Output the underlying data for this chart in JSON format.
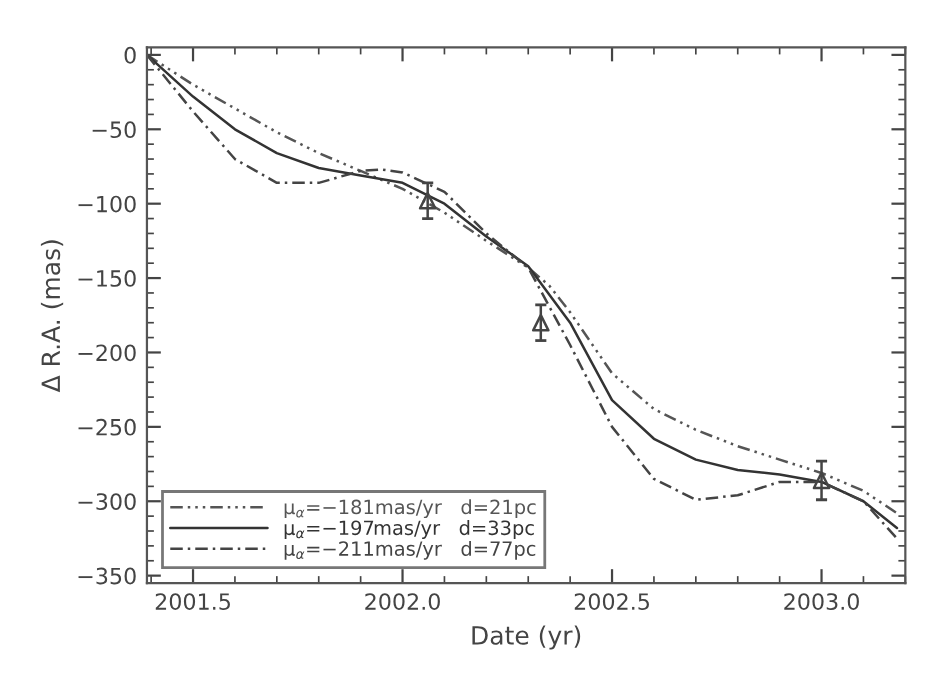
{
  "chart_data": {
    "type": "line",
    "xlabel": "Date (yr)",
    "ylabel": "Δ R.A. (mas)",
    "xlim": [
      2001.39,
      2003.2
    ],
    "ylim": [
      -355,
      5
    ],
    "xticks": [
      {
        "value": 2001.5,
        "label": "2001.5"
      },
      {
        "value": 2002.0,
        "label": "2002.0"
      },
      {
        "value": 2002.5,
        "label": "2002.5"
      },
      {
        "value": 2003.0,
        "label": "2003.0"
      }
    ],
    "yticks": [
      -350,
      -300,
      -250,
      -200,
      -150,
      -100,
      -50,
      0
    ],
    "grid": false,
    "legend": "bottom left",
    "series": [
      {
        "name": "μ$_{α}$=−181mas/yr   d=21pc",
        "color": "#555555",
        "line_style": "dash-dot-dot",
        "x": [
          2001.39,
          2001.5,
          2001.6,
          2001.7,
          2001.8,
          2001.9,
          2002.0,
          2002.1,
          2002.2,
          2002.3,
          2002.35,
          2002.4,
          2002.5,
          2002.6,
          2002.7,
          2002.8,
          2002.9,
          2003.0,
          2003.1,
          2003.18
        ],
        "values": [
          0,
          -20,
          -36,
          -52,
          -66,
          -78,
          -90,
          -106,
          -125,
          -143,
          -155,
          -173,
          -214,
          -238,
          -252,
          -263,
          -272,
          -281,
          -293,
          -308
        ]
      },
      {
        "name": "μ$_{α}$=−197mas/yr   d=33pc",
        "color": "#333333",
        "line_style": "solid",
        "x": [
          2001.39,
          2001.5,
          2001.6,
          2001.7,
          2001.8,
          2001.9,
          2002.0,
          2002.1,
          2002.2,
          2002.3,
          2002.4,
          2002.5,
          2002.6,
          2002.7,
          2002.8,
          2002.9,
          2003.0,
          2003.1,
          2003.18
        ],
        "values": [
          0,
          -28,
          -50,
          -66,
          -76,
          -81,
          -86,
          -100,
          -122,
          -142,
          -180,
          -232,
          -258,
          -272,
          -279,
          -282,
          -287,
          -300,
          -318
        ]
      },
      {
        "name": "μ$_{α}$=−211mas/yr   d=77pc",
        "color": "#444444",
        "line_style": "dash-dot",
        "x": [
          2001.39,
          2001.5,
          2001.6,
          2001.7,
          2001.8,
          2001.9,
          2001.95,
          2002.0,
          2002.1,
          2002.2,
          2002.3,
          2002.4,
          2002.5,
          2002.6,
          2002.7,
          2002.8,
          2002.9,
          2003.0,
          2003.1,
          2003.18
        ],
        "values": [
          0,
          -38,
          -70,
          -86,
          -86,
          -78,
          -77,
          -79,
          -92,
          -120,
          -143,
          -195,
          -250,
          -285,
          -299,
          -296,
          -287,
          -287,
          -300,
          -325
        ]
      },
      {
        "type": "scatter",
        "color": "#444444",
        "marker": "triangle",
        "x": [
          2002.06,
          2002.33,
          2003.0
        ],
        "values": [
          -98,
          -180,
          -286
        ],
        "errors": [
          12,
          12,
          13
        ]
      }
    ]
  }
}
